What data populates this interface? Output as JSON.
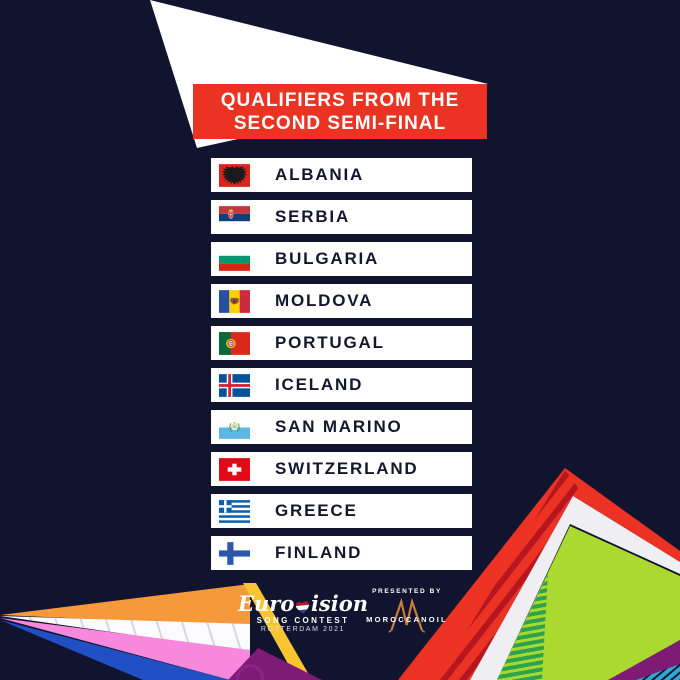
{
  "header": {
    "line1": "QUALIFIERS FROM THE",
    "line2": "SECOND SEMI-FINAL"
  },
  "countries": [
    {
      "name": "ALBANIA",
      "flag": "albania"
    },
    {
      "name": "SERBIA",
      "flag": "serbia"
    },
    {
      "name": "BULGARIA",
      "flag": "bulgaria"
    },
    {
      "name": "MOLDOVA",
      "flag": "moldova"
    },
    {
      "name": "PORTUGAL",
      "flag": "portugal"
    },
    {
      "name": "ICELAND",
      "flag": "iceland"
    },
    {
      "name": "SAN MARINO",
      "flag": "san-marino"
    },
    {
      "name": "SWITZERLAND",
      "flag": "switzerland"
    },
    {
      "name": "GREECE",
      "flag": "greece"
    },
    {
      "name": "FINLAND",
      "flag": "finland"
    }
  ],
  "footer": {
    "logo": {
      "text_start": "Euro",
      "text_end": "ision",
      "line2": "SONG CONTEST",
      "line3": "ROTTERDAM 2021"
    },
    "presented_by": "PRESENTED BY",
    "sponsor": "MOROCCANOIL"
  },
  "colors": {
    "background": "#11142F",
    "banner_red": "#EB3223",
    "row_text": "#14162E",
    "orange": "#F6993B",
    "pink": "#F788DB",
    "blue": "#2150C4",
    "yellow": "#F7C52F",
    "purple": "#7E1B74",
    "lime": "#ABD930",
    "green": "#2EA34D",
    "teal": "#2FA9CB"
  }
}
